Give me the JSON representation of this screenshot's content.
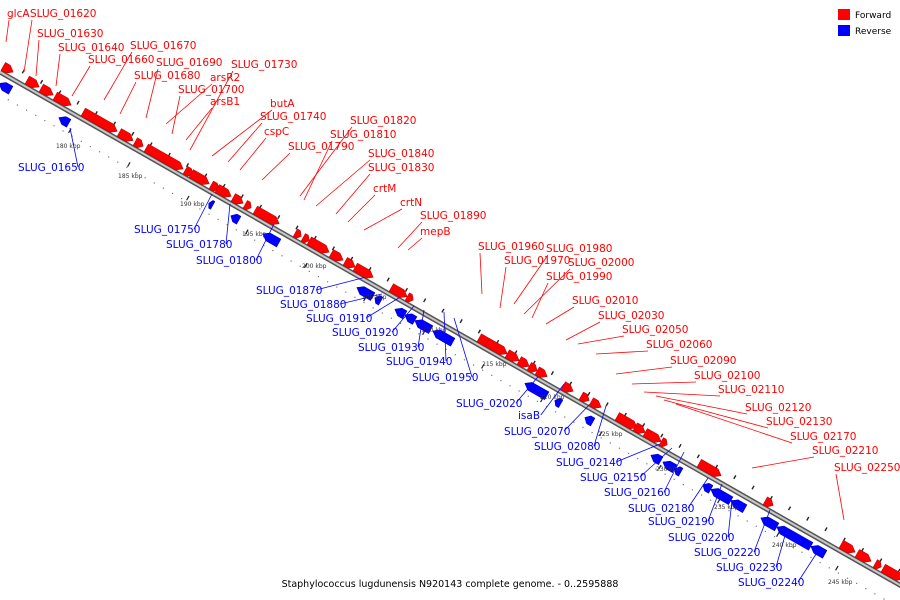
{
  "caption": "Staphylococcus lugdunensis N920143 complete genome. - 0..2595888",
  "legend": {
    "forward_label": "Forward",
    "reverse_label": "Reverse",
    "forward_color": "#ff0000",
    "reverse_color": "#0000ff"
  },
  "colors": {
    "forward": "#ff0000",
    "reverse": "#0000ff",
    "backbone": "#888888",
    "ticks": "#000000"
  },
  "scale_labels": [
    "180 kbp",
    "185 kbp",
    "190 kbp",
    "195 kbp",
    "200 kbp",
    "205 kbp",
    "210 kbp",
    "215 kbp",
    "220 kbp",
    "225 kbp",
    "230 kbp",
    "235 kbp",
    "240 kbp",
    "245 kbp"
  ],
  "forward_genes": [
    "glcA",
    "SLUG_01620",
    "SLUG_01630",
    "SLUG_01640",
    "SLUG_01660",
    "SLUG_01670",
    "SLUG_01680",
    "SLUG_01690",
    "arsR2",
    "SLUG_01700",
    "arsB1",
    "SLUG_01730",
    "butA",
    "SLUG_01740",
    "cspC",
    "SLUG_01790",
    "SLUG_01820",
    "SLUG_01810",
    "SLUG_01840",
    "SLUG_01830",
    "crtM",
    "crtN",
    "SLUG_01890",
    "mepB",
    "SLUG_01960",
    "SLUG_01980",
    "SLUG_01970",
    "SLUG_02000",
    "SLUG_01990",
    "SLUG_02010",
    "SLUG_02030",
    "SLUG_02050",
    "SLUG_02060",
    "SLUG_02090",
    "SLUG_02100",
    "SLUG_02110",
    "SLUG_02120",
    "SLUG_02130",
    "SLUG_02170",
    "SLUG_02210",
    "SLUG_02250"
  ],
  "reverse_genes": [
    "SLUG_01650",
    "SLUG_01750",
    "SLUG_01780",
    "SLUG_01800",
    "SLUG_01870",
    "SLUG_01880",
    "SLUG_01910",
    "SLUG_01920",
    "SLUG_01930",
    "SLUG_01940",
    "SLUG_01950",
    "SLUG_02020",
    "isaB",
    "SLUG_02070",
    "SLUG_02080",
    "SLUG_02140",
    "SLUG_02150",
    "SLUG_02160",
    "SLUG_02180",
    "SLUG_02190",
    "SLUG_02200",
    "SLUG_02220",
    "SLUG_02230",
    "SLUG_02240"
  ]
}
